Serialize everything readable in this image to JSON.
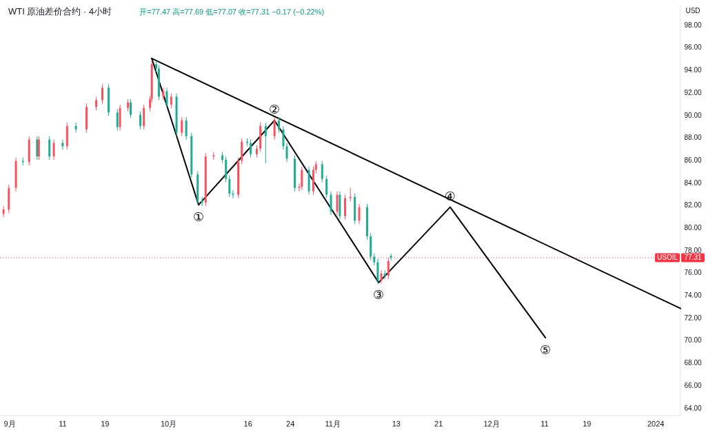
{
  "chart_data": {
    "type": "candlestick",
    "title": "WTI 原油差价合约 · 4小时",
    "subtitle": "开=77.47 高=77.69 低=77.07 收=77.31 −0.17 (−0.22%)",
    "ylabel": "USD",
    "x": [
      "2023-08-30T20:00",
      "2023-08-31T20:00",
      "2023-09-02T04:00",
      "2023-09-03T12:00",
      "2023-09-04T16:00",
      "2023-09-06T04:00",
      "2023-09-06T12:00",
      "2023-09-08T12:00",
      "2023-09-09T08:00",
      "2023-09-11T00:00",
      "2023-09-11T20:00",
      "2023-09-13T12:00",
      "2023-09-15T12:00",
      "2023-09-17T08:00",
      "2023-09-18T12:00",
      "2023-09-19T16:00",
      "2023-09-21T08:00",
      "2023-09-21T20:00",
      "2023-09-23T08:00",
      "2023-09-23T20:00",
      "2023-09-25T16:00",
      "2023-09-26T08:00",
      "2023-09-27T12:00",
      "2023-09-27T20:00",
      "2023-09-28T16:00",
      "2023-09-29T04:00",
      "2023-09-30T00:00",
      "2023-09-30T16:00",
      "2023-10-01T12:00",
      "2023-10-02T12:00",
      "2023-10-03T12:00",
      "2023-10-04T08:00",
      "2023-10-05T08:00",
      "2023-10-06T12:00",
      "2023-10-07T08:00",
      "2023-10-08T00:00",
      "2023-10-09T12:00",
      "2023-10-11T04:00",
      "2023-10-11T20:00",
      "2023-10-12T12:00",
      "2023-10-13T04:00",
      "2023-10-14T04:00",
      "2023-10-14T20:00",
      "2023-10-15T20:00",
      "2023-10-16T12:00",
      "2023-10-17T16:00",
      "2023-10-18T08:00",
      "2023-10-19T08:00",
      "2023-10-21T00:00",
      "2023-10-21T20:00",
      "2023-10-22T16:00",
      "2023-10-23T08:00",
      "2023-10-24T20:00",
      "2023-10-25T16:00",
      "2023-10-26T04:00",
      "2023-10-27T12:00",
      "2023-10-28T08:00",
      "2023-10-28T20:00",
      "2023-10-30T00:00",
      "2023-10-30T20:00",
      "2023-10-31T16:00",
      "2023-11-01T20:00",
      "2023-11-02T08:00",
      "2023-11-03T08:00",
      "2023-11-04T08:00",
      "2023-11-05T04:00",
      "2023-11-06T00:00",
      "2023-11-07T12:00",
      "2023-11-08T04:00",
      "2023-11-08T20:00",
      "2023-11-09T12:00",
      "2023-11-10T04:00",
      "2023-11-10T20:00",
      "2023-11-11T12:00",
      "2023-11-12T00:00"
    ],
    "ohlc": [
      [
        81.2,
        81.9,
        80.9,
        81.6
      ],
      [
        81.6,
        83.8,
        81.3,
        83.5
      ],
      [
        83.5,
        86.2,
        83.2,
        85.9
      ],
      [
        85.9,
        86.2,
        85.5,
        85.8
      ],
      [
        85.8,
        88.1,
        85.5,
        87.8
      ],
      [
        87.8,
        88.1,
        86.0,
        86.3
      ],
      [
        86.3,
        88.1,
        86.0,
        87.8
      ],
      [
        87.8,
        88.1,
        86.0,
        86.3
      ],
      [
        86.3,
        87.8,
        86.0,
        87.5
      ],
      [
        87.5,
        87.8,
        86.9,
        87.2
      ],
      [
        87.2,
        89.3,
        86.9,
        89.0
      ],
      [
        89.0,
        89.3,
        88.4,
        88.7
      ],
      [
        88.7,
        91.0,
        88.4,
        90.7
      ],
      [
        90.7,
        91.6,
        90.4,
        91.3
      ],
      [
        91.3,
        92.7,
        91.0,
        92.4
      ],
      [
        92.4,
        92.7,
        89.9,
        90.2
      ],
      [
        90.2,
        90.5,
        88.6,
        88.9
      ],
      [
        88.9,
        90.9,
        88.6,
        90.6
      ],
      [
        90.6,
        91.4,
        90.3,
        91.1
      ],
      [
        91.1,
        91.4,
        89.7,
        90.0
      ],
      [
        90.0,
        90.3,
        88.7,
        89.0
      ],
      [
        89.0,
        90.9,
        88.7,
        90.6
      ],
      [
        90.6,
        91.7,
        90.3,
        91.4
      ],
      [
        91.4,
        94.8,
        91.1,
        94.5
      ],
      [
        94.5,
        94.8,
        93.8,
        94.1
      ],
      [
        94.1,
        94.4,
        91.3,
        91.6
      ],
      [
        91.6,
        92.4,
        91.3,
        92.1
      ],
      [
        92.1,
        92.4,
        90.6,
        90.9
      ],
      [
        90.9,
        91.9,
        90.6,
        91.6
      ],
      [
        91.6,
        91.9,
        88.1,
        88.4
      ],
      [
        88.4,
        89.8,
        88.1,
        89.5
      ],
      [
        89.5,
        89.8,
        87.8,
        88.1
      ],
      [
        88.1,
        88.4,
        84.4,
        84.7
      ],
      [
        84.7,
        85.0,
        82.0,
        82.4
      ],
      [
        82.4,
        82.7,
        81.9,
        82.2
      ],
      [
        82.2,
        86.6,
        81.9,
        86.3
      ],
      [
        86.3,
        86.7,
        86.0,
        86.4
      ],
      [
        86.4,
        86.7,
        85.7,
        86.0
      ],
      [
        86.0,
        86.3,
        84.0,
        84.3
      ],
      [
        84.3,
        84.6,
        82.7,
        83.0
      ],
      [
        83.0,
        83.3,
        82.6,
        82.9
      ],
      [
        82.9,
        86.2,
        82.6,
        85.9
      ],
      [
        85.9,
        87.9,
        85.6,
        87.6
      ],
      [
        87.6,
        87.9,
        87.2,
        87.5
      ],
      [
        87.5,
        87.8,
        86.2,
        86.5
      ],
      [
        86.5,
        87.3,
        86.2,
        87.0
      ],
      [
        87.0,
        89.3,
        86.7,
        89.0
      ],
      [
        89.0,
        89.3,
        85.7,
        88.1
      ],
      [
        88.1,
        89.8,
        87.8,
        89.5
      ],
      [
        89.5,
        89.8,
        88.4,
        88.7
      ],
      [
        88.7,
        89.0,
        86.9,
        87.2
      ],
      [
        87.2,
        87.5,
        85.8,
        86.1
      ],
      [
        86.1,
        86.4,
        83.2,
        83.5
      ],
      [
        83.5,
        83.9,
        83.2,
        83.6
      ],
      [
        83.6,
        85.4,
        83.3,
        85.1
      ],
      [
        85.1,
        85.4,
        82.9,
        83.2
      ],
      [
        83.2,
        85.4,
        82.9,
        85.1
      ],
      [
        85.1,
        85.9,
        84.8,
        85.6
      ],
      [
        85.6,
        85.9,
        84.0,
        84.3
      ],
      [
        84.3,
        84.6,
        82.6,
        82.9
      ],
      [
        82.9,
        83.2,
        81.1,
        81.4
      ],
      [
        81.4,
        83.2,
        81.1,
        82.9
      ],
      [
        82.9,
        83.2,
        80.7,
        81.0
      ],
      [
        81.0,
        82.9,
        80.7,
        82.6
      ],
      [
        82.6,
        83.5,
        82.3,
        82.7
      ],
      [
        82.7,
        83.0,
        80.3,
        80.6
      ],
      [
        80.6,
        82.1,
        80.3,
        81.8
      ],
      [
        81.8,
        82.1,
        78.9,
        79.2
      ],
      [
        79.2,
        79.5,
        77.1,
        77.4
      ],
      [
        77.4,
        77.7,
        76.6,
        76.9
      ],
      [
        76.9,
        77.2,
        75.0,
        75.3
      ],
      [
        75.3,
        76.2,
        75.0,
        75.9
      ],
      [
        75.9,
        76.2,
        75.4,
        75.7
      ],
      [
        75.7,
        77.3,
        75.4,
        77.0
      ],
      [
        77.47,
        77.69,
        77.07,
        77.31
      ]
    ],
    "colors": [
      "#f7525f",
      "#f7525f",
      "#f7525f",
      "#22ab94",
      "#f7525f",
      "#22ab94",
      "#f7525f",
      "#22ab94",
      "#f7525f",
      "#22ab94",
      "#f7525f",
      "#22ab94",
      "#f7525f",
      "#f7525f",
      "#f7525f",
      "#22ab94",
      "#22ab94",
      "#f7525f",
      "#f7525f",
      "#22ab94",
      "#22ab94",
      "#f7525f",
      "#f7525f",
      "#f7525f",
      "#22ab94",
      "#22ab94",
      "#f7525f",
      "#22ab94",
      "#f7525f",
      "#22ab94",
      "#f7525f",
      "#22ab94",
      "#22ab94",
      "#22ab94",
      "#22ab94",
      "#f7525f",
      "#f7525f",
      "#22ab94",
      "#22ab94",
      "#22ab94",
      "#22ab94",
      "#f7525f",
      "#f7525f",
      "#22ab94",
      "#22ab94",
      "#f7525f",
      "#f7525f",
      "#22ab94",
      "#f7525f",
      "#22ab94",
      "#22ab94",
      "#22ab94",
      "#22ab94",
      "#f7525f",
      "#f7525f",
      "#22ab94",
      "#f7525f",
      "#f7525f",
      "#22ab94",
      "#22ab94",
      "#22ab94",
      "#f7525f",
      "#22ab94",
      "#f7525f",
      "#f7525f",
      "#22ab94",
      "#f7525f",
      "#22ab94",
      "#22ab94",
      "#22ab94",
      "#22ab94",
      "#f7525f",
      "#22ab94",
      "#f7525f",
      "#22ab94"
    ],
    "series": [
      {
        "type": "line",
        "color": "#000000",
        "x": [
          "2023-09-27T20:00",
          "2023-10-06T16:00",
          "2023-10-21T00:00",
          "2023-11-09T16:00",
          "2023-11-23T04:00",
          "2023-12-11T04:00"
        ],
        "values": [
          95.0,
          82.0,
          89.5,
          75.1,
          81.8,
          70.2
        ]
      },
      {
        "type": "line",
        "color": "#000000",
        "x": [
          "2023-09-27T20:00",
          "2024-01-05T16:00"
        ],
        "values": [
          95.0,
          72.8
        ]
      }
    ],
    "annotations": [
      {
        "text": "①",
        "x": "2023-10-06T16:00",
        "y": 82.0
      },
      {
        "text": "②",
        "x": "2023-10-21T00:00",
        "y": 89.5
      },
      {
        "text": "③",
        "x": "2023-11-09T16:00",
        "y": 75.1
      },
      {
        "text": "④",
        "x": "2023-11-23T04:00",
        "y": 81.8
      },
      {
        "text": "⑤",
        "x": "2023-12-11T04:00",
        "y": 70.2
      },
      "77.31"
    ],
    "ref_lines": [
      {
        "axis": "y",
        "value": 77.31,
        "label": "USOIL",
        "color": "#f23645",
        "line_style": "dotted"
      }
    ],
    "xlim": [
      "2023-08-30T04:00",
      "2024-01-05T16:00"
    ],
    "ylim": [
      63.3,
      99.7
    ],
    "xticks": [
      {
        "value": "2023-09-01",
        "label": "9月"
      },
      {
        "value": "2023-09-11",
        "label": "11"
      },
      {
        "value": "2023-09-19",
        "label": "19"
      },
      {
        "value": "2023-10-01",
        "label": "10月"
      },
      {
        "value": "2023-10-16",
        "label": "16"
      },
      {
        "value": "2023-10-24",
        "label": "24"
      },
      {
        "value": "2023-11-01",
        "label": "11月"
      },
      {
        "value": "2023-11-13",
        "label": "13"
      },
      {
        "value": "2023-11-21",
        "label": "21"
      },
      {
        "value": "2023-12-01",
        "label": "12月"
      },
      {
        "value": "2023-12-11",
        "label": "11"
      },
      {
        "value": "2023-12-19",
        "label": "19"
      },
      {
        "value": "2024-01-01",
        "label": "2024"
      }
    ],
    "yticks": [
      {
        "value": 64,
        "label": "64.00"
      },
      {
        "value": 66,
        "label": "66.00"
      },
      {
        "value": 68,
        "label": "68.00"
      },
      {
        "value": 70,
        "label": "70.00"
      },
      {
        "value": 72,
        "label": "72.00"
      },
      {
        "value": 74,
        "label": "74.00"
      },
      {
        "value": 76,
        "label": "76.00"
      },
      {
        "value": 78,
        "label": "78.00"
      },
      {
        "value": 80,
        "label": "80.00"
      },
      {
        "value": 82,
        "label": "82.00"
      },
      {
        "value": 84,
        "label": "84.00"
      },
      {
        "value": 86,
        "label": "86.00"
      },
      {
        "value": 88,
        "label": "88.00"
      },
      {
        "value": 90,
        "label": "90.00"
      },
      {
        "value": 92,
        "label": "92.00"
      },
      {
        "value": 94,
        "label": "94.00"
      },
      {
        "value": 96,
        "label": "96.00"
      },
      {
        "value": 98,
        "label": "98.00"
      }
    ]
  }
}
